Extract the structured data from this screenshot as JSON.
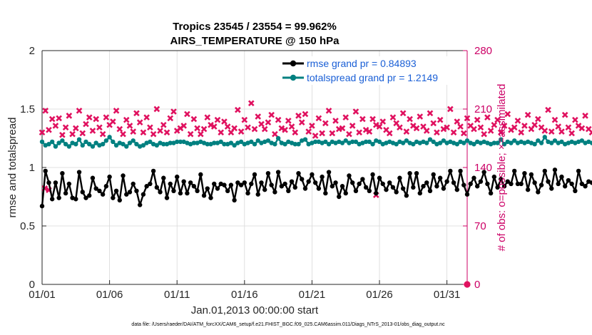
{
  "colors": {
    "rmse": "#000000",
    "spread": "#008080",
    "obs": "#e0115f",
    "right_axis": "#cc0066",
    "legend_text": "#1a5fd6",
    "grid": "#d9d9d9"
  },
  "chart_data": {
    "type": "line",
    "title": "Tropics 23545 / 23554 = 99.962%",
    "subtitle": "AIRS_TEMPERATURE @ 150 hPa",
    "xlabel": "Jan.01,2013 00:00:00 start",
    "ylabel": "rmse and totalspread",
    "y2label": "# of obs: o=possible; ×=assimilated",
    "footnote": "data file: /Users/raeder/DAI/ATM_forcXX/CAM6_setup/f.e21.FHIST_BGC.f09_025.CAM6assim.011/Diags_NTrS_2013-01/obs_diag_output.nc",
    "xlim": [
      0,
      31.5
    ],
    "ylim": [
      0,
      2
    ],
    "y2lim": [
      0,
      280
    ],
    "xticks": [
      0,
      5,
      10,
      15,
      20,
      25,
      30
    ],
    "xtick_labels": [
      "01/01",
      "01/06",
      "01/11",
      "01/16",
      "01/21",
      "01/26",
      "01/31"
    ],
    "yticks": [
      0,
      0.5,
      1,
      1.5,
      2
    ],
    "ytick_labels": [
      "0",
      "0.5",
      "1",
      "1.5",
      "2"
    ],
    "y2ticks": [
      0,
      70,
      140,
      210,
      280
    ],
    "y2tick_labels": [
      "0",
      "70",
      "140",
      "210",
      "280"
    ],
    "grid": true,
    "legend_position": "top-right",
    "legend": [
      "rmse grand pr = 0.84893",
      "totalspread grand pr = 1.2149"
    ],
    "x_step_days": 0.25,
    "series": [
      {
        "name": "rmse grand pr = 0.84893",
        "axis": "left",
        "values": [
          0.67,
          0.97,
          0.87,
          0.73,
          0.87,
          0.74,
          0.95,
          0.78,
          0.86,
          0.74,
          0.73,
          0.96,
          0.79,
          0.74,
          0.76,
          0.91,
          0.82,
          0.8,
          0.77,
          0.84,
          0.92,
          0.74,
          0.8,
          0.72,
          0.93,
          0.77,
          0.79,
          0.86,
          0.8,
          0.68,
          0.77,
          0.84,
          0.86,
          0.97,
          0.83,
          0.79,
          0.91,
          0.74,
          0.86,
          0.8,
          0.92,
          0.78,
          0.88,
          0.78,
          0.87,
          0.84,
          0.8,
          0.94,
          0.76,
          0.82,
          0.74,
          0.86,
          0.82,
          0.86,
          0.85,
          0.8,
          0.85,
          0.72,
          0.87,
          0.85,
          0.87,
          0.78,
          0.86,
          0.94,
          0.77,
          0.87,
          0.81,
          0.95,
          0.85,
          0.79,
          0.96,
          0.84,
          0.86,
          0.8,
          0.88,
          0.83,
          0.95,
          0.9,
          0.82,
          0.88,
          0.94,
          0.87,
          0.82,
          0.92,
          0.78,
          0.96,
          0.84,
          0.87,
          0.75,
          0.84,
          0.78,
          0.93,
          0.87,
          0.8,
          0.86,
          0.9,
          0.83,
          0.8,
          0.94,
          0.78,
          0.91,
          0.86,
          0.81,
          0.87,
          0.83,
          0.79,
          0.91,
          0.82,
          0.76,
          0.95,
          0.83,
          0.95,
          0.78,
          0.84,
          0.87,
          0.8,
          0.94,
          0.84,
          0.91,
          0.82,
          0.88,
          0.97,
          0.87,
          0.81,
          0.97,
          0.85,
          0.77,
          0.86,
          0.91,
          0.84,
          0.88,
          0.96,
          0.86,
          0.78,
          0.92,
          0.83,
          0.9,
          0.84,
          0.88,
          0.86,
          0.97,
          0.86,
          0.86,
          0.95,
          0.81,
          0.94,
          0.87,
          0.79,
          0.85,
          0.97,
          0.88,
          0.82,
          0.98,
          0.86,
          0.92,
          0.84,
          0.89,
          0.86,
          0.8,
          0.97,
          0.86,
          0.84,
          0.88,
          0.87,
          0.96,
          0.85,
          0.83,
          0.92,
          0.85,
          0.84,
          0.88,
          1.01,
          0.86,
          0.8,
          0.94,
          0.82,
          0.96,
          0.86,
          0.83,
          0.9,
          0.85,
          0.8,
          0.96,
          0.84,
          0.78,
          0.95,
          0.83,
          0.68,
          0.96,
          0.83,
          0.72,
          0.86,
          0.97,
          0.76,
          0.88,
          0.84,
          0.79,
          0.96,
          0.84,
          0.89,
          0.78,
          0.85,
          0.89,
          0.8,
          0.89,
          0.88,
          0.76,
          0.93,
          0.87,
          0.85,
          0.79,
          0.88,
          0.92,
          0.82,
          0.88,
          0.72,
          0.86,
          0.86,
          0.79,
          0.87,
          0.73,
          0.89,
          0.81,
          0.85,
          0.79,
          0.85,
          0.74,
          0.84,
          0.9,
          0.79,
          0.8,
          0.88,
          0.81,
          0.94,
          0.83,
          0.89,
          0.84,
          0.97,
          0.89,
          0.94,
          0.86,
          0.91,
          0.97,
          0.93
        ]
      },
      {
        "name": "totalspread grand pr = 1.2149",
        "axis": "left",
        "values": [
          1.22,
          1.19,
          1.2,
          1.22,
          1.18,
          1.21,
          1.23,
          1.2,
          1.18,
          1.21,
          1.2,
          1.24,
          1.19,
          1.22,
          1.2,
          1.18,
          1.21,
          1.19,
          1.2,
          1.23,
          1.26,
          1.22,
          1.19,
          1.21,
          1.2,
          1.18,
          1.21,
          1.23,
          1.2,
          1.18,
          1.19,
          1.21,
          1.22,
          1.2,
          1.19,
          1.21,
          1.2,
          1.2,
          1.21,
          1.21,
          1.22,
          1.22,
          1.22,
          1.21,
          1.2,
          1.21,
          1.21,
          1.22,
          1.21,
          1.2,
          1.2,
          1.21,
          1.21,
          1.22,
          1.2,
          1.2,
          1.21,
          1.19,
          1.21,
          1.22,
          1.2,
          1.21,
          1.22,
          1.2,
          1.23,
          1.21,
          1.22,
          1.23,
          1.21,
          1.2,
          1.25,
          1.21,
          1.2,
          1.22,
          1.21,
          1.2,
          1.2,
          1.23,
          1.24,
          1.2,
          1.21,
          1.22,
          1.22,
          1.21,
          1.22,
          1.2,
          1.22,
          1.21,
          1.22,
          1.21,
          1.23,
          1.21,
          1.22,
          1.22,
          1.2,
          1.21,
          1.22,
          1.22,
          1.2,
          1.23,
          1.22,
          1.2,
          1.21,
          1.22,
          1.21,
          1.2,
          1.22,
          1.21,
          1.23,
          1.21,
          1.2,
          1.22,
          1.21,
          1.22,
          1.21,
          1.24,
          1.22,
          1.2,
          1.21,
          1.23,
          1.21,
          1.22,
          1.21,
          1.2,
          1.22,
          1.21,
          1.23,
          1.21,
          1.2,
          1.22,
          1.21,
          1.22,
          1.21,
          1.2,
          1.21,
          1.21,
          1.24,
          1.2,
          1.22,
          1.21,
          1.23,
          1.21,
          1.22,
          1.21,
          1.22,
          1.21,
          1.2,
          1.23,
          1.21,
          1.26,
          1.22,
          1.21,
          1.23,
          1.21,
          1.22,
          1.2,
          1.21,
          1.22,
          1.21,
          1.22,
          1.23,
          1.21,
          1.22,
          1.21,
          1.23,
          1.21,
          1.2,
          1.21,
          1.22,
          1.21,
          1.23,
          1.22,
          1.2,
          1.21,
          1.22,
          1.21,
          1.22,
          1.21,
          1.23,
          1.21,
          1.2,
          1.22,
          1.21,
          1.2,
          1.22,
          1.21,
          1.22,
          1.2,
          1.19,
          1.21,
          1.22,
          1.21,
          1.2,
          1.21,
          1.22,
          1.21,
          1.2,
          1.21,
          1.2,
          1.22,
          1.21,
          1.19,
          1.21,
          1.2,
          1.22,
          1.21,
          1.2,
          1.21,
          1.22,
          1.2,
          1.19,
          1.21,
          1.2,
          1.21,
          1.2,
          1.22,
          1.21,
          1.2,
          1.21,
          1.2,
          1.19,
          1.21,
          1.2,
          1.22,
          1.21,
          1.23,
          1.2,
          1.21,
          1.2,
          1.22,
          1.21,
          1.2,
          1.22,
          1.21,
          1.25,
          1.2,
          1.22,
          1.21,
          1.23,
          1.21,
          1.2,
          1.22,
          1.21,
          1.22,
          1.19,
          1.17
        ]
      },
      {
        "name": "# of obs possible",
        "axis": "right",
        "marker": "o",
        "values_by_x": [
          [
            32.0,
            0
          ]
        ]
      },
      {
        "name": "# of obs assimilated",
        "axis": "right",
        "marker": "x",
        "values": [
          182,
          208,
          185,
          198,
          190,
          199,
          179,
          188,
          202,
          180,
          187,
          208,
          181,
          192,
          200,
          184,
          198,
          188,
          180,
          200,
          191,
          195,
          208,
          186,
          180,
          197,
          190,
          183,
          205,
          194,
          182,
          200,
          188,
          180,
          210,
          184,
          191,
          182,
          199,
          207,
          184,
          187,
          190,
          204,
          180,
          198,
          187,
          180,
          186,
          200,
          191,
          189,
          197,
          182,
          195,
          189,
          182,
          187,
          209,
          183,
          197,
          188,
          217,
          186,
          201,
          192,
          186,
          194,
          203,
          180,
          197,
          187,
          185,
          196,
          189,
          182,
          202,
          194,
          204,
          183,
          190,
          178,
          199,
          181,
          193,
          208,
          181,
          196,
          186,
          187,
          200,
          180,
          190,
          207,
          182,
          198,
          185,
          183,
          198,
          191,
          189,
          195,
          185,
          181,
          200,
          193,
          188,
          205,
          183,
          198,
          190,
          187,
          201,
          189,
          184,
          205,
          193,
          182,
          197,
          186,
          188,
          210,
          182,
          195,
          189,
          181,
          199,
          190,
          186,
          197,
          188,
          180,
          200,
          184,
          191,
          197,
          182,
          190,
          204,
          185,
          188,
          196,
          182,
          190,
          203,
          186,
          191,
          198,
          188,
          184,
          209,
          183,
          197,
          189,
          183,
          203,
          188,
          181,
          197,
          190,
          187,
          202,
          186,
          182,
          198,
          190,
          186,
          200,
          184,
          182,
          189,
          181,
          200,
          194,
          183,
          188,
          197,
          185,
          190,
          196,
          183,
          191,
          201,
          187,
          180,
          198,
          189,
          182,
          204,
          186,
          190,
          195,
          181,
          189,
          199,
          183,
          186,
          197,
          182,
          193,
          196,
          184,
          190,
          201,
          181,
          188,
          197,
          183,
          190,
          200,
          185,
          182,
          198,
          187,
          189,
          182,
          196,
          180,
          186,
          200,
          183,
          183,
          185,
          190,
          181,
          186,
          199,
          183,
          180,
          188,
          194,
          183,
          181,
          189,
          197,
          183,
          186,
          189,
          200,
          181,
          187,
          188,
          188,
          181,
          186,
          195,
          183,
          187,
          193,
          184,
          209,
          183,
          187,
          185,
          182,
          206
        ]
      },
      {
        "name": "# of obs assimilated (outliers)",
        "axis": "right",
        "marker": "x",
        "values_by_x": [
          [
            0.2,
            115
          ],
          [
            0.5,
            113
          ],
          [
            24.75,
            107
          ]
        ]
      }
    ]
  }
}
